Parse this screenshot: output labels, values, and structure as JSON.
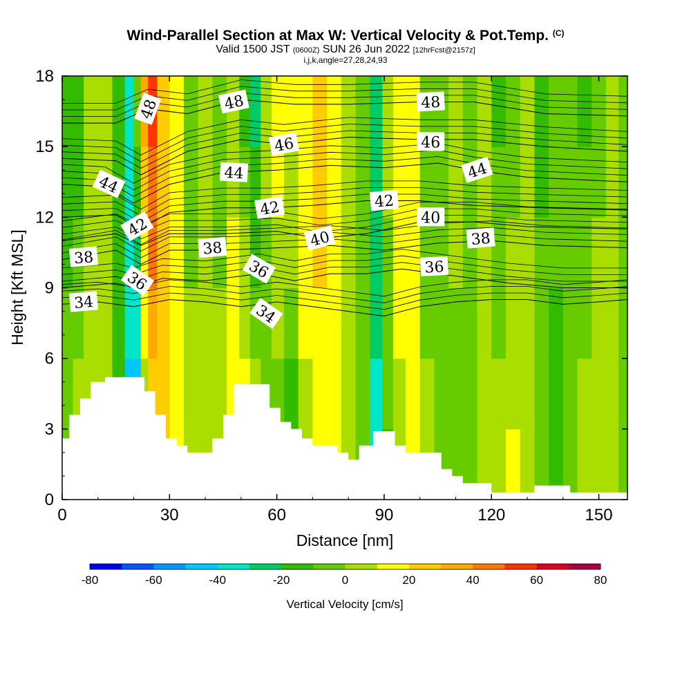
{
  "chart_data": {
    "type": "heatmap",
    "title": {
      "main": "Wind-Parallel Section at Max W: Vertical Velocity & Pot.Temp.",
      "corner": "(C)",
      "valid_prefix": "Valid 1500 JST",
      "valid_utc": "(0600Z)",
      "valid_date": "SUN 26 Jun 2022",
      "forecast": "[12hrFcst@2157z]",
      "indices": "i,j,k,angle=27,28,24,93"
    },
    "xlabel": "Distance [nm]",
    "ylabel": "Height [Kft MSL]",
    "xlim": [
      0,
      158
    ],
    "ylim": [
      0,
      18
    ],
    "x_ticks": [
      "0",
      "30",
      "60",
      "90",
      "120",
      "150"
    ],
    "y_ticks": [
      "0",
      "3",
      "6",
      "9",
      "12",
      "15",
      "18"
    ],
    "colorbar": {
      "title": "Vertical Velocity [cm/s]",
      "labels": [
        "-80",
        "-60",
        "-40",
        "-20",
        "0",
        "20",
        "40",
        "60",
        "80"
      ],
      "colors": [
        "#0000ee",
        "#0055ff",
        "#0099ff",
        "#00c8ff",
        "#00e6c8",
        "#00cc66",
        "#33bb00",
        "#66cc00",
        "#aadd00",
        "#ffff00",
        "#ffcc00",
        "#ffaa00",
        "#ff7700",
        "#ff3300",
        "#dd0022",
        "#aa0044",
        "#880066"
      ]
    },
    "terrain_profile": [
      [
        0,
        2.6
      ],
      [
        2,
        2.6
      ],
      [
        2,
        3.6
      ],
      [
        5,
        3.6
      ],
      [
        5,
        4.3
      ],
      [
        8,
        4.3
      ],
      [
        8,
        5
      ],
      [
        12,
        5
      ],
      [
        12,
        5.2
      ],
      [
        23,
        5.2
      ],
      [
        23,
        4.6
      ],
      [
        26,
        4.6
      ],
      [
        26,
        3.6
      ],
      [
        29,
        3.6
      ],
      [
        29,
        2.6
      ],
      [
        32,
        2.6
      ],
      [
        32,
        2.3
      ],
      [
        35,
        2.3
      ],
      [
        35,
        2
      ],
      [
        42,
        2
      ],
      [
        42,
        2.6
      ],
      [
        45,
        2.6
      ],
      [
        45,
        3.6
      ],
      [
        48,
        3.6
      ],
      [
        48,
        4.9
      ],
      [
        58,
        4.9
      ],
      [
        58,
        3.9
      ],
      [
        61,
        3.9
      ],
      [
        61,
        3.3
      ],
      [
        64,
        3.3
      ],
      [
        64,
        3
      ],
      [
        67,
        3
      ],
      [
        67,
        2.6
      ],
      [
        70,
        2.6
      ],
      [
        70,
        2.3
      ],
      [
        77,
        2.3
      ],
      [
        77,
        2
      ],
      [
        80,
        2
      ],
      [
        80,
        1.7
      ],
      [
        83,
        1.7
      ],
      [
        83,
        2.3
      ],
      [
        87,
        2.3
      ],
      [
        87,
        2.9
      ],
      [
        93,
        2.9
      ],
      [
        93,
        2.3
      ],
      [
        96,
        2.3
      ],
      [
        96,
        2
      ],
      [
        106,
        2
      ],
      [
        106,
        1.3
      ],
      [
        109,
        1.3
      ],
      [
        109,
        1
      ],
      [
        112,
        1
      ],
      [
        112,
        0.7
      ],
      [
        120,
        0.7
      ],
      [
        120,
        0.3
      ],
      [
        132,
        0.3
      ],
      [
        132,
        0.6
      ],
      [
        142,
        0.6
      ],
      [
        142,
        0.3
      ],
      [
        158,
        0.3
      ]
    ],
    "velocity_field": [
      {
        "x": 2,
        "top": 18,
        "w": 0,
        "wtop": -20
      },
      {
        "x": 4,
        "top": 18,
        "w": 10,
        "wtop": -20
      },
      {
        "x": 8,
        "top": 18,
        "w": 0,
        "wtop": 0
      },
      {
        "x": 12,
        "top": 18,
        "w": 5,
        "wtop": 10
      },
      {
        "x": 16,
        "top": 18,
        "w": -20,
        "wtop": -10
      },
      {
        "x": 19,
        "top": 18,
        "w": -45,
        "wtop": -30
      },
      {
        "x": 21,
        "top": 18,
        "w": -55,
        "wtop": 0
      },
      {
        "x": 23,
        "top": 18,
        "w": -10,
        "wtop": 40
      },
      {
        "x": 25,
        "top": 18,
        "w": 20,
        "wtop": 55
      },
      {
        "x": 28,
        "top": 18,
        "w": 25,
        "wtop": 30
      },
      {
        "x": 32,
        "top": 18,
        "w": 15,
        "wtop": 10
      },
      {
        "x": 36,
        "top": 18,
        "w": 10,
        "wtop": -10
      },
      {
        "x": 40,
        "top": 18,
        "w": 5,
        "wtop": 0
      },
      {
        "x": 44,
        "top": 18,
        "w": 10,
        "wtop": -10
      },
      {
        "x": 48,
        "top": 18,
        "w": 25,
        "wtop": 0
      },
      {
        "x": 51,
        "top": 18,
        "w": 30,
        "wtop": -20
      },
      {
        "x": 54,
        "top": 18,
        "w": 10,
        "wtop": -25
      },
      {
        "x": 57,
        "top": 18,
        "w": -15,
        "wtop": 10
      },
      {
        "x": 60,
        "top": 18,
        "w": -10,
        "wtop": 20
      },
      {
        "x": 64,
        "top": 18,
        "w": -20,
        "wtop": 15
      },
      {
        "x": 68,
        "top": 18,
        "w": 5,
        "wtop": 20
      },
      {
        "x": 72,
        "top": 18,
        "w": 15,
        "wtop": 25
      },
      {
        "x": 76,
        "top": 18,
        "w": 10,
        "wtop": 20
      },
      {
        "x": 80,
        "top": 18,
        "w": 0,
        "wtop": 10
      },
      {
        "x": 84,
        "top": 18,
        "w": -10,
        "wtop": -5
      },
      {
        "x": 88,
        "top": 18,
        "w": -35,
        "wtop": -20
      },
      {
        "x": 91,
        "top": 18,
        "w": -15,
        "wtop": 5
      },
      {
        "x": 94,
        "top": 18,
        "w": 5,
        "wtop": 20
      },
      {
        "x": 98,
        "top": 18,
        "w": 10,
        "wtop": 10
      },
      {
        "x": 102,
        "top": 18,
        "w": 5,
        "wtop": -10
      },
      {
        "x": 106,
        "top": 18,
        "w": 0,
        "wtop": -10
      },
      {
        "x": 110,
        "top": 18,
        "w": -5,
        "wtop": 5
      },
      {
        "x": 114,
        "top": 18,
        "w": 0,
        "wtop": -10
      },
      {
        "x": 118,
        "top": 18,
        "w": 5,
        "wtop": 0
      },
      {
        "x": 122,
        "top": 18,
        "w": 10,
        "wtop": -15
      },
      {
        "x": 126,
        "top": 18,
        "w": 15,
        "wtop": -10
      },
      {
        "x": 130,
        "top": 18,
        "w": 10,
        "wtop": 0
      },
      {
        "x": 134,
        "top": 18,
        "w": 0,
        "wtop": -15
      },
      {
        "x": 138,
        "top": 18,
        "w": -15,
        "wtop": -5
      },
      {
        "x": 142,
        "top": 18,
        "w": -10,
        "wtop": 0
      },
      {
        "x": 146,
        "top": 18,
        "w": 5,
        "wtop": -15
      },
      {
        "x": 150,
        "top": 18,
        "w": 10,
        "wtop": -5
      },
      {
        "x": 154,
        "top": 18,
        "w": 0,
        "wtop": 5
      },
      {
        "x": 157,
        "top": 18,
        "w": -10,
        "wtop": 0
      }
    ],
    "isentropes": [
      {
        "theta": "34",
        "pts": [
          [
            0,
            8.3
          ],
          [
            10,
            8.4
          ],
          [
            20,
            8.2
          ],
          [
            30,
            8.5
          ],
          [
            40,
            8.4
          ],
          [
            50,
            8.2
          ],
          [
            60,
            8.4
          ],
          [
            70,
            8.2
          ],
          [
            80,
            8.0
          ],
          [
            90,
            7.8
          ],
          [
            100,
            8.2
          ],
          [
            110,
            8.4
          ],
          [
            120,
            8.5
          ],
          [
            130,
            8.5
          ],
          [
            140,
            8.3
          ],
          [
            150,
            8.4
          ],
          [
            158,
            8.5
          ]
        ],
        "label_x": 6,
        "label_y": 8.4,
        "angle": -5
      },
      {
        "theta": "36",
        "pts": [
          [
            0,
            9.0
          ],
          [
            15,
            9.2
          ],
          [
            20,
            9.0
          ],
          [
            28,
            9.4
          ],
          [
            40,
            9.3
          ],
          [
            55,
            9.6
          ],
          [
            65,
            9.3
          ],
          [
            75,
            9.6
          ],
          [
            85,
            9.6
          ],
          [
            95,
            9.8
          ],
          [
            110,
            9.5
          ],
          [
            125,
            9.2
          ],
          [
            140,
            9.0
          ],
          [
            158,
            9.0
          ]
        ],
        "label_x": 21,
        "label_y": 9.3,
        "angle": 35
      },
      {
        "theta": "38",
        "pts": [
          [
            0,
            10.2
          ],
          [
            15,
            10.6
          ],
          [
            22,
            10.0
          ],
          [
            30,
            10.6
          ],
          [
            45,
            10.6
          ],
          [
            60,
            10.7
          ],
          [
            75,
            10.8
          ],
          [
            90,
            10.6
          ],
          [
            105,
            10.9
          ],
          [
            120,
            11.0
          ],
          [
            135,
            10.8
          ],
          [
            158,
            10.7
          ]
        ],
        "label_x": 6,
        "label_y": 10.3,
        "angle": -5
      },
      {
        "theta": "40",
        "pts": [
          [
            0,
            11.0
          ],
          [
            15,
            11.3
          ],
          [
            22,
            10.8
          ],
          [
            30,
            11.3
          ],
          [
            45,
            11.3
          ],
          [
            60,
            11.4
          ],
          [
            72,
            11.1
          ],
          [
            85,
            11.3
          ],
          [
            100,
            11.8
          ],
          [
            115,
            11.8
          ],
          [
            130,
            11.6
          ],
          [
            158,
            11.5
          ]
        ],
        "label_x": 72,
        "label_y": 11.1,
        "angle": -15
      },
      {
        "theta": "42",
        "pts": [
          [
            0,
            12.0
          ],
          [
            15,
            12.1
          ],
          [
            22,
            11.5
          ],
          [
            30,
            12.2
          ],
          [
            45,
            12.4
          ],
          [
            58,
            12.4
          ],
          [
            70,
            12.5
          ],
          [
            85,
            12.7
          ],
          [
            100,
            12.7
          ],
          [
            115,
            12.5
          ],
          [
            135,
            12.4
          ],
          [
            158,
            12.3
          ]
        ],
        "label_x": 58,
        "label_y": 12.4,
        "angle": -10
      },
      {
        "theta": "44",
        "pts": [
          [
            0,
            13.4
          ],
          [
            12,
            13.3
          ],
          [
            20,
            12.6
          ],
          [
            30,
            13.4
          ],
          [
            45,
            13.9
          ],
          [
            60,
            14.0
          ],
          [
            75,
            14.2
          ],
          [
            90,
            14.1
          ],
          [
            105,
            14.3
          ],
          [
            115,
            14.0
          ],
          [
            130,
            13.7
          ],
          [
            158,
            13.5
          ]
        ],
        "label_x": 13,
        "label_y": 13.4,
        "angle": 25
      },
      {
        "theta": "46",
        "pts": [
          [
            0,
            14.5
          ],
          [
            15,
            14.4
          ],
          [
            22,
            13.8
          ],
          [
            35,
            14.8
          ],
          [
            50,
            15.3
          ],
          [
            62,
            15.1
          ],
          [
            80,
            15.4
          ],
          [
            100,
            15.3
          ],
          [
            115,
            15.3
          ],
          [
            135,
            15.0
          ],
          [
            158,
            14.8
          ]
        ],
        "label_x": 62,
        "label_y": 15.1,
        "angle": -10
      },
      {
        "theta": "48",
        "pts": [
          [
            0,
            16.0
          ],
          [
            15,
            16.0
          ],
          [
            24,
            16.6
          ],
          [
            35,
            16.4
          ],
          [
            50,
            17.0
          ],
          [
            65,
            16.8
          ],
          [
            80,
            16.8
          ],
          [
            100,
            16.9
          ],
          [
            115,
            16.9
          ],
          [
            135,
            16.4
          ],
          [
            158,
            16.3
          ]
        ],
        "label_x": 24,
        "label_y": 16.6,
        "angle": -70
      }
    ],
    "extra_isentrope_labels": [
      {
        "text": "48",
        "x": 48,
        "y": 16.9,
        "angle": -12
      },
      {
        "text": "48",
        "x": 103,
        "y": 16.9,
        "angle": -3
      },
      {
        "text": "46",
        "x": 103,
        "y": 15.2,
        "angle": 0
      },
      {
        "text": "44",
        "x": 48,
        "y": 13.9,
        "angle": 3
      },
      {
        "text": "44",
        "x": 116,
        "y": 14.0,
        "angle": -18
      },
      {
        "text": "42",
        "x": 90,
        "y": 12.7,
        "angle": -5
      },
      {
        "text": "42",
        "x": 21,
        "y": 11.6,
        "angle": -30
      },
      {
        "text": "40",
        "x": 103,
        "y": 12.0,
        "angle": 0
      },
      {
        "text": "38",
        "x": 42,
        "y": 10.7,
        "angle": -5
      },
      {
        "text": "38",
        "x": 117,
        "y": 11.1,
        "angle": -5
      },
      {
        "text": "36",
        "x": 55,
        "y": 9.8,
        "angle": 30
      },
      {
        "text": "36",
        "x": 104,
        "y": 9.9,
        "angle": -3
      },
      {
        "text": "34",
        "x": 57,
        "y": 7.9,
        "angle": 35
      }
    ]
  }
}
